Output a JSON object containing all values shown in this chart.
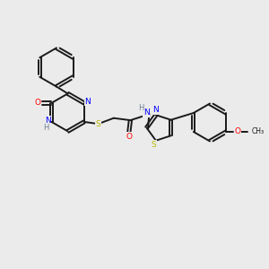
{
  "bg_color": "#ebebeb",
  "bond_color": "#1a1a1a",
  "N_color": "#0000ff",
  "O_color": "#ff0000",
  "S_color": "#b8b800",
  "H_color": "#708090",
  "figsize": [
    3.0,
    3.0
  ],
  "dpi": 100,
  "xlim": [
    0,
    10
  ],
  "ylim": [
    0,
    10
  ]
}
